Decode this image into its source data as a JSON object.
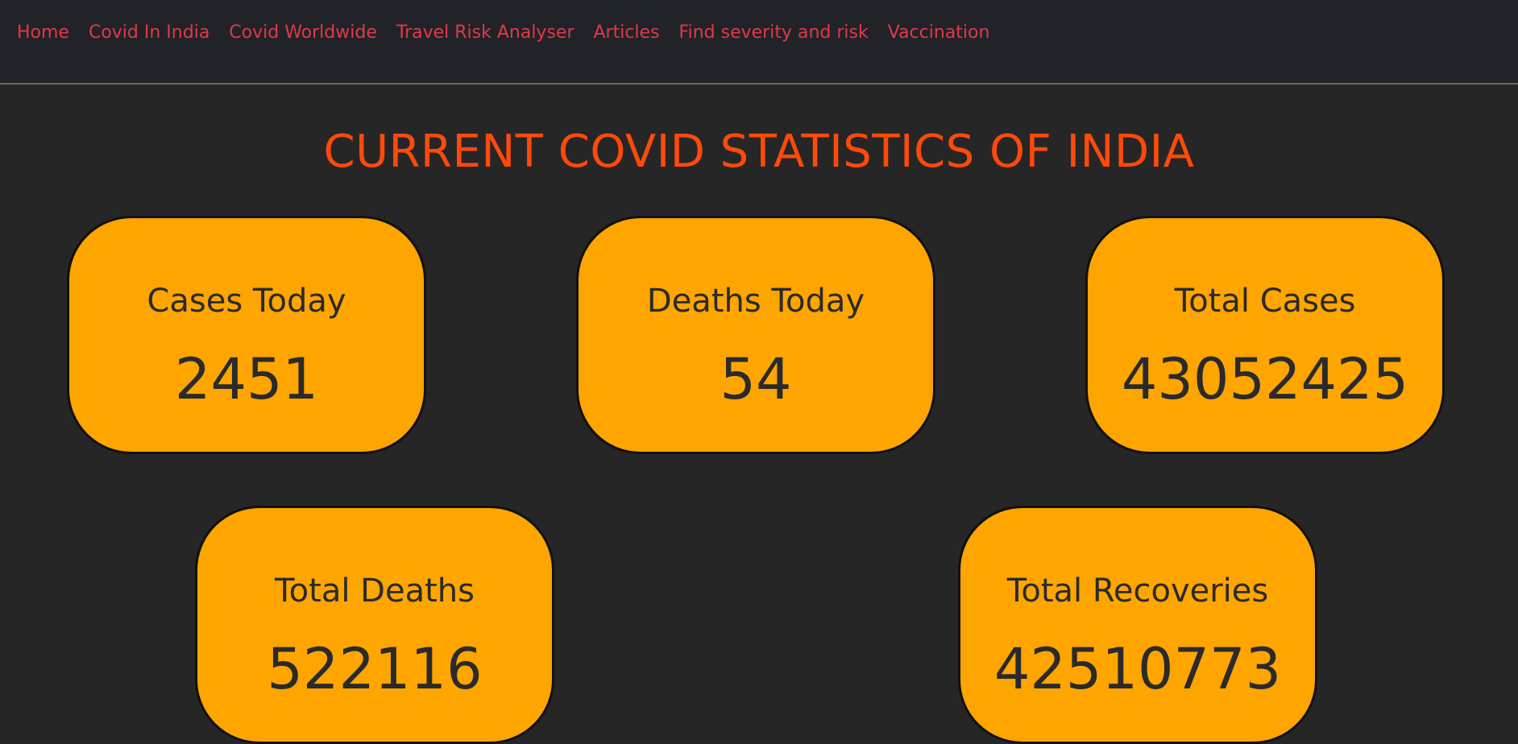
{
  "nav": {
    "items": [
      {
        "label": "Home"
      },
      {
        "label": "Covid In India"
      },
      {
        "label": "Covid Worldwide"
      },
      {
        "label": "Travel Risk Analyser"
      },
      {
        "label": "Articles"
      },
      {
        "label": "Find severity and risk"
      },
      {
        "label": "Vaccination"
      }
    ]
  },
  "title": "CURRENT COVID STATISTICS OF INDIA",
  "stats": {
    "cases_today": {
      "label": "Cases Today",
      "value": "2451"
    },
    "deaths_today": {
      "label": "Deaths Today",
      "value": "54"
    },
    "total_cases": {
      "label": "Total Cases",
      "value": "43052425"
    },
    "total_deaths": {
      "label": "Total Deaths",
      "value": "522116"
    },
    "total_recoveries": {
      "label": "Total Recoveries",
      "value": "42510773"
    }
  },
  "colors": {
    "nav_text": "#e0394b",
    "title": "#ff4a0a",
    "card_bg": "#ffa500",
    "page_bg": "#262627",
    "nav_bg": "#212328"
  }
}
